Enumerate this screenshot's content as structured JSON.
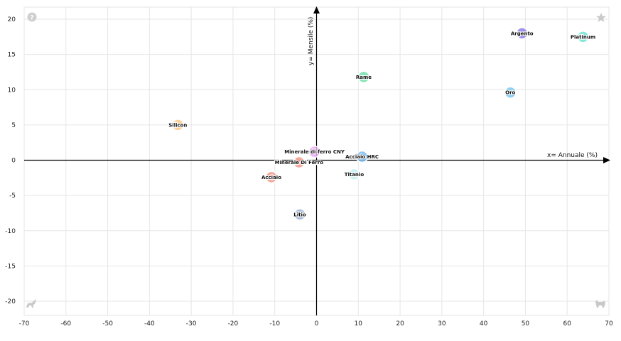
{
  "chart_data": {
    "type": "scatter",
    "title": "",
    "xlabel": "x= Annuale (%)",
    "ylabel": "y= Mensile (%)",
    "xlim": [
      -70,
      70
    ],
    "ylim": [
      -21,
      21
    ],
    "xticks": [
      -70,
      -60,
      -50,
      -40,
      -30,
      -20,
      -10,
      0,
      10,
      20,
      30,
      40,
      50,
      60,
      70
    ],
    "yticks": [
      -20,
      -15,
      -10,
      -5,
      0,
      5,
      10,
      15,
      20
    ],
    "grid": true,
    "points": [
      {
        "label": "Argento",
        "x": 49.2,
        "y": 18.0,
        "color": "#8f7fe0"
      },
      {
        "label": "Platinum",
        "x": 63.8,
        "y": 17.5,
        "color": "#6fe3d4"
      },
      {
        "label": "Rame",
        "x": 11.3,
        "y": 11.8,
        "color": "#6fe0a8"
      },
      {
        "label": "Oro",
        "x": 46.4,
        "y": 9.6,
        "color": "#7cc9ee"
      },
      {
        "label": "Silicon",
        "x": -33.2,
        "y": 5.0,
        "color": "#ffc98a"
      },
      {
        "label": "Minerale di ferro CNY",
        "x": -0.5,
        "y": 1.2,
        "color": "#e9a9f2"
      },
      {
        "label": "Acciaio HRC",
        "x": 10.9,
        "y": 0.5,
        "color": "#7cbcec"
      },
      {
        "label": "Minerale Di Ferro",
        "x": -4.2,
        "y": -0.3,
        "color": "#f49a8a"
      },
      {
        "label": "Acciaio",
        "x": -10.8,
        "y": -2.4,
        "color": "#f49a8a"
      },
      {
        "label": "Titanio",
        "x": 9.0,
        "y": -2.0,
        "color": "#c4f0f4"
      },
      {
        "label": "Litio",
        "x": -4.0,
        "y": -7.7,
        "color": "#9fb5d6"
      }
    ]
  },
  "icons": {
    "top_left": "help-circle-icon",
    "top_right": "star-icon",
    "bottom_left": "bull-icon",
    "bottom_right": "bear-icon"
  }
}
